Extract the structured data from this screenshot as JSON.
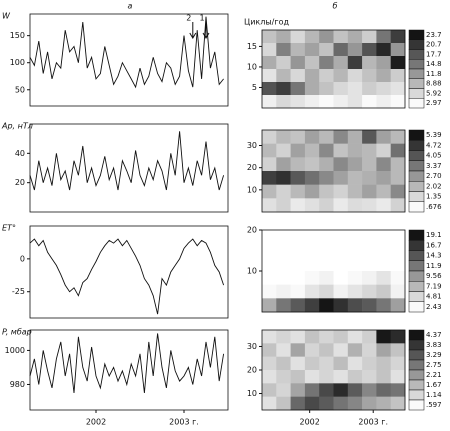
{
  "column_labels": [
    "а",
    "б"
  ],
  "chart_data": [
    {
      "type": "line",
      "ylabel": "W",
      "xlim": [
        2001.6,
        2003.85
      ],
      "ylim": [
        20,
        190
      ],
      "yticks": [
        50,
        100,
        150
      ],
      "x": [
        2001.6,
        2001.65,
        2001.7,
        2001.75,
        2001.8,
        2001.85,
        2001.9,
        2001.95,
        2002,
        2002.05,
        2002.1,
        2002.15,
        2002.2,
        2002.25,
        2002.3,
        2002.35,
        2002.4,
        2002.45,
        2002.5,
        2002.55,
        2002.6,
        2002.65,
        2002.7,
        2002.75,
        2002.8,
        2002.85,
        2002.9,
        2002.95,
        2003,
        2003.05,
        2003.1,
        2003.15,
        2003.2,
        2003.25,
        2003.3,
        2003.35,
        2003.4,
        2003.45,
        2003.5,
        2003.55,
        2003.6,
        2003.65,
        2003.7,
        2003.75,
        2003.8
      ],
      "values": [
        110,
        95,
        140,
        80,
        120,
        70,
        100,
        90,
        160,
        120,
        130,
        100,
        175,
        90,
        110,
        70,
        80,
        130,
        95,
        60,
        75,
        100,
        85,
        70,
        55,
        90,
        60,
        75,
        110,
        80,
        65,
        100,
        90,
        60,
        75,
        150,
        85,
        55,
        160,
        70,
        185,
        90,
        120,
        60,
        70
      ],
      "annotations": [
        {
          "text": "2",
          "x": 2003.45
        },
        {
          "text": "1",
          "x": 2003.6
        }
      ],
      "color": "#111"
    },
    {
      "type": "line",
      "ylabel": "Aр, нТл",
      "xlim": [
        2001.6,
        2003.85
      ],
      "ylim": [
        0,
        60
      ],
      "yticks": [
        20,
        40
      ],
      "x": [
        2001.6,
        2001.65,
        2001.7,
        2001.75,
        2001.8,
        2001.85,
        2001.9,
        2001.95,
        2002,
        2002.05,
        2002.1,
        2002.15,
        2002.2,
        2002.25,
        2002.3,
        2002.35,
        2002.4,
        2002.45,
        2002.5,
        2002.55,
        2002.6,
        2002.65,
        2002.7,
        2002.75,
        2002.8,
        2002.85,
        2002.9,
        2002.95,
        2003,
        2003.05,
        2003.1,
        2003.15,
        2003.2,
        2003.25,
        2003.3,
        2003.35,
        2003.4,
        2003.45,
        2003.5,
        2003.55,
        2003.6,
        2003.65,
        2003.7,
        2003.75,
        2003.8
      ],
      "values": [
        25,
        15,
        35,
        20,
        30,
        18,
        40,
        22,
        28,
        15,
        35,
        25,
        45,
        20,
        30,
        18,
        25,
        38,
        22,
        30,
        15,
        35,
        28,
        20,
        42,
        25,
        18,
        30,
        22,
        35,
        28,
        15,
        40,
        25,
        55,
        20,
        30,
        18,
        35,
        25,
        48,
        22,
        30,
        15,
        25
      ],
      "color": "#111"
    },
    {
      "type": "line",
      "ylabel": "ET°",
      "xlim": [
        2001.6,
        2003.85
      ],
      "ylim": [
        -45,
        25
      ],
      "yticks": [
        -25,
        0
      ],
      "x": [
        2001.6,
        2001.65,
        2001.7,
        2001.75,
        2001.8,
        2001.85,
        2001.9,
        2001.95,
        2002,
        2002.05,
        2002.1,
        2002.15,
        2002.2,
        2002.25,
        2002.3,
        2002.35,
        2002.4,
        2002.45,
        2002.5,
        2002.55,
        2002.6,
        2002.65,
        2002.7,
        2002.75,
        2002.8,
        2002.85,
        2002.9,
        2002.95,
        2003,
        2003.05,
        2003.1,
        2003.15,
        2003.2,
        2003.25,
        2003.3,
        2003.35,
        2003.4,
        2003.45,
        2003.5,
        2003.55,
        2003.6,
        2003.65,
        2003.7,
        2003.75,
        2003.8
      ],
      "values": [
        12,
        15,
        10,
        14,
        5,
        0,
        -5,
        -12,
        -20,
        -25,
        -22,
        -28,
        -18,
        -15,
        -8,
        -2,
        5,
        10,
        14,
        12,
        15,
        10,
        14,
        8,
        2,
        -5,
        -15,
        -20,
        -28,
        -42,
        -15,
        -20,
        -10,
        -5,
        0,
        8,
        12,
        15,
        10,
        14,
        12,
        5,
        -5,
        -10,
        -20
      ],
      "color": "#111"
    },
    {
      "type": "line",
      "ylabel": "P, мбар",
      "xlim": [
        2001.6,
        2003.85
      ],
      "ylim": [
        965,
        1012
      ],
      "yticks": [
        980,
        1000
      ],
      "xticks": [
        {
          "value": 2002.35,
          "label": "2002"
        },
        {
          "value": 2003.35,
          "label": "2003 г."
        }
      ],
      "x": [
        2001.6,
        2001.65,
        2001.7,
        2001.75,
        2001.8,
        2001.85,
        2001.9,
        2001.95,
        2002,
        2002.05,
        2002.1,
        2002.15,
        2002.2,
        2002.25,
        2002.3,
        2002.35,
        2002.4,
        2002.45,
        2002.5,
        2002.55,
        2002.6,
        2002.65,
        2002.7,
        2002.75,
        2002.8,
        2002.85,
        2002.9,
        2002.95,
        2003,
        2003.05,
        2003.1,
        2003.15,
        2003.2,
        2003.25,
        2003.3,
        2003.35,
        2003.4,
        2003.45,
        2003.5,
        2003.55,
        2003.6,
        2003.65,
        2003.7,
        2003.75,
        2003.8
      ],
      "values": [
        985,
        995,
        980,
        1000,
        988,
        978,
        995,
        1005,
        985,
        998,
        975,
        1008,
        990,
        982,
        1002,
        985,
        978,
        992,
        985,
        990,
        982,
        988,
        980,
        992,
        985,
        998,
        975,
        1005,
        985,
        1010,
        990,
        978,
        1000,
        988,
        982,
        985,
        990,
        980,
        995,
        985,
        1005,
        990,
        1008,
        982,
        998
      ],
      "color": "#111"
    },
    {
      "type": "heatmap",
      "ylabel": "Циклы/год",
      "xlim": [
        2001.6,
        2003.85
      ],
      "ylim": [
        0,
        19
      ],
      "yticks": [
        5,
        10,
        15
      ],
      "z": [
        [
          8,
          10,
          6,
          9,
          12,
          8,
          10,
          7,
          15,
          20
        ],
        [
          6,
          14,
          9,
          11,
          8,
          16,
          12,
          18,
          22,
          12
        ],
        [
          10,
          7,
          12,
          8,
          14,
          10,
          20,
          9,
          11,
          23
        ],
        [
          5,
          9,
          6,
          10,
          7,
          9,
          6,
          8,
          10,
          7
        ],
        [
          18,
          20,
          15,
          10,
          8,
          6,
          5,
          7,
          6,
          5
        ],
        [
          4,
          6,
          5,
          4,
          3,
          4,
          5,
          3,
          4,
          3
        ]
      ],
      "colorbar_ticks": [
        23.7,
        20.7,
        17.7,
        14.8,
        11.8,
        8.88,
        5.92,
        2.97
      ]
    },
    {
      "type": "heatmap",
      "xlim": [
        2001.6,
        2003.85
      ],
      "ylim": [
        0,
        37
      ],
      "yticks": [
        10,
        20,
        30
      ],
      "z": [
        [
          1.5,
          2,
          1.8,
          2.5,
          2,
          3,
          2.2,
          4,
          2.5,
          2
        ],
        [
          2,
          1.5,
          2.5,
          2,
          3,
          1.8,
          2.2,
          2,
          1.5,
          3.5
        ],
        [
          1.5,
          2.5,
          2,
          1.8,
          2.2,
          3,
          2.5,
          2,
          3,
          2
        ],
        [
          4.5,
          4.8,
          4,
          3.5,
          3,
          2.5,
          2,
          2.2,
          2.5,
          2
        ],
        [
          2,
          1.5,
          2,
          2.5,
          1.8,
          1.5,
          2,
          2.5,
          2,
          3
        ],
        [
          1.2,
          1.5,
          1,
          1.2,
          1.5,
          1,
          1.3,
          1.2,
          1,
          1.5
        ]
      ],
      "colorbar_ticks": [
        5.39,
        4.72,
        4.05,
        3.37,
        {
          "value": 2.7,
          "label": "2.70"
        },
        2.02,
        1.35,
        {
          "value": 0.676,
          "label": ".676"
        }
      ]
    },
    {
      "type": "heatmap",
      "xlim": [
        2001.6,
        2003.85
      ],
      "ylim": [
        0,
        20
      ],
      "yticks": [
        10,
        20
      ],
      "z": [
        [
          0,
          0,
          0,
          0,
          0,
          0,
          0,
          0,
          0,
          0
        ],
        [
          0,
          0,
          0,
          0,
          0,
          0,
          0,
          0,
          0,
          0
        ],
        [
          0,
          0,
          0,
          0,
          0,
          0,
          0,
          0,
          0,
          0
        ],
        [
          0,
          0,
          0,
          2.5,
          3,
          0,
          2.5,
          3,
          4,
          2.5
        ],
        [
          2.5,
          3,
          2.5,
          4,
          5,
          3,
          4,
          5,
          6,
          3
        ],
        [
          8,
          12,
          14,
          16,
          19,
          17,
          15,
          14,
          12,
          9
        ]
      ],
      "colorbar_ticks": [
        19.1,
        16.7,
        14.3,
        11.9,
        9.56,
        7.19,
        4.81,
        2.43
      ]
    },
    {
      "type": "heatmap",
      "xlim": [
        2001.6,
        2003.85
      ],
      "ylim": [
        3,
        37
      ],
      "yticks": [
        10,
        20,
        30
      ],
      "xticks": [
        {
          "value": 2002.35,
          "label": "2002"
        },
        {
          "value": 2003.35,
          "label": "2003 г."
        }
      ],
      "z": [
        [
          1,
          1.2,
          1,
          1.5,
          1.2,
          1.4,
          1,
          1.3,
          4.3,
          4
        ],
        [
          1.5,
          1,
          2,
          1.2,
          1.5,
          1,
          1.8,
          1.2,
          2,
          1.5
        ],
        [
          1.2,
          1.5,
          1,
          1.4,
          1.2,
          1.6,
          1,
          1.3,
          1.5,
          1.2
        ],
        [
          1,
          1.3,
          1.5,
          1,
          1.2,
          1,
          1.4,
          1.2,
          1.5,
          1
        ],
        [
          1.5,
          1.2,
          2,
          2.8,
          3.5,
          4,
          3.2,
          2.5,
          3,
          2.8
        ],
        [
          1,
          1.5,
          3,
          3.5,
          3.2,
          2.8,
          2.5,
          2,
          1.8,
          1.5
        ]
      ],
      "colorbar_ticks": [
        4.37,
        3.83,
        3.29,
        2.75,
        2.21,
        1.67,
        1.14,
        {
          "value": 0.597,
          "label": ".597"
        }
      ]
    }
  ]
}
